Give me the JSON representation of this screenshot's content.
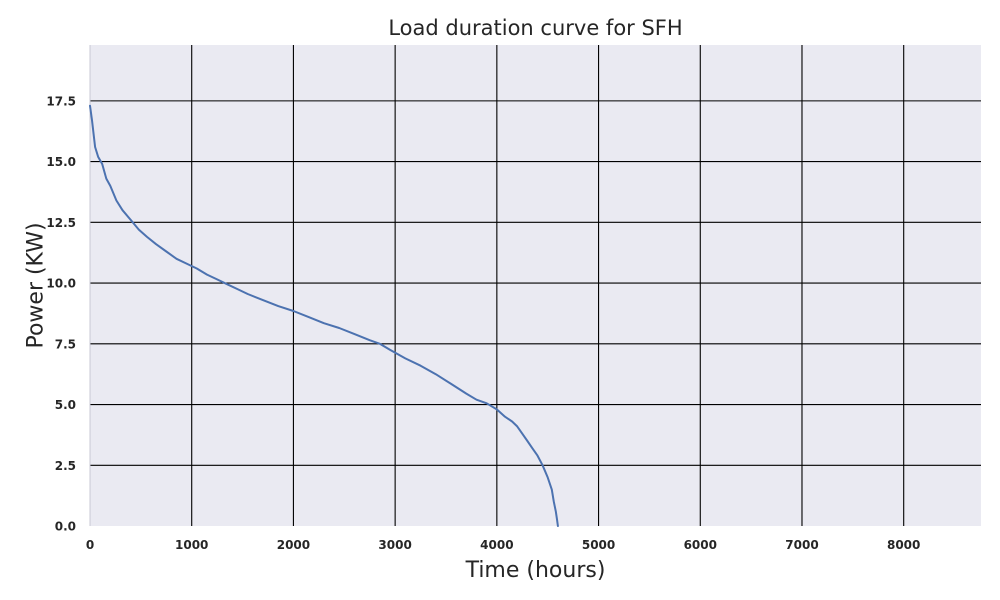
{
  "chart_data": {
    "type": "line",
    "title": "Load duration curve for SFH",
    "xlabel": "Time (hours)",
    "ylabel": "Power (KW)",
    "xlim": [
      0,
      8760
    ],
    "ylim": [
      0,
      19.8
    ],
    "xticks": [
      0,
      1000,
      2000,
      3000,
      4000,
      5000,
      6000,
      7000,
      8000
    ],
    "xtick_labels": [
      "0",
      "1000",
      "2000",
      "3000",
      "4000",
      "5000",
      "6000",
      "7000",
      "8000"
    ],
    "yticks": [
      0,
      2.5,
      5,
      7.5,
      10,
      12.5,
      15,
      17.5
    ],
    "ytick_labels": [
      "0.0",
      "2.5",
      "5.0",
      "7.5",
      "10.0",
      "12.5",
      "15.0",
      "17.5"
    ],
    "grid": true,
    "colors": {
      "background": "#eaeaf2",
      "grid": "#000000",
      "series": "#4c72b0"
    },
    "series": [
      {
        "x": [
          0,
          20,
          50,
          80,
          120,
          160,
          200,
          260,
          320,
          400,
          480,
          560,
          650,
          750,
          850,
          950,
          1050,
          1150,
          1250,
          1350,
          1450,
          1550,
          1700,
          1850,
          2000,
          2150,
          2300,
          2450,
          2600,
          2750,
          2850,
          2950,
          3100,
          3250,
          3400,
          3550,
          3700,
          3800,
          3900,
          4000,
          4080,
          4150,
          4200,
          4250,
          4300,
          4350,
          4400,
          4450,
          4500,
          4540,
          4560,
          4580,
          4590,
          4600
        ],
        "y": [
          17.3,
          16.7,
          15.6,
          15.2,
          14.9,
          14.3,
          14.0,
          13.4,
          13.0,
          12.6,
          12.2,
          11.9,
          11.6,
          11.3,
          11.0,
          10.8,
          10.6,
          10.35,
          10.15,
          9.95,
          9.75,
          9.55,
          9.3,
          9.05,
          8.85,
          8.6,
          8.35,
          8.15,
          7.9,
          7.65,
          7.5,
          7.25,
          6.9,
          6.6,
          6.25,
          5.85,
          5.45,
          5.2,
          5.05,
          4.8,
          4.5,
          4.3,
          4.1,
          3.8,
          3.5,
          3.2,
          2.9,
          2.5,
          2.0,
          1.5,
          1.0,
          0.6,
          0.3,
          0.0
        ]
      }
    ]
  }
}
